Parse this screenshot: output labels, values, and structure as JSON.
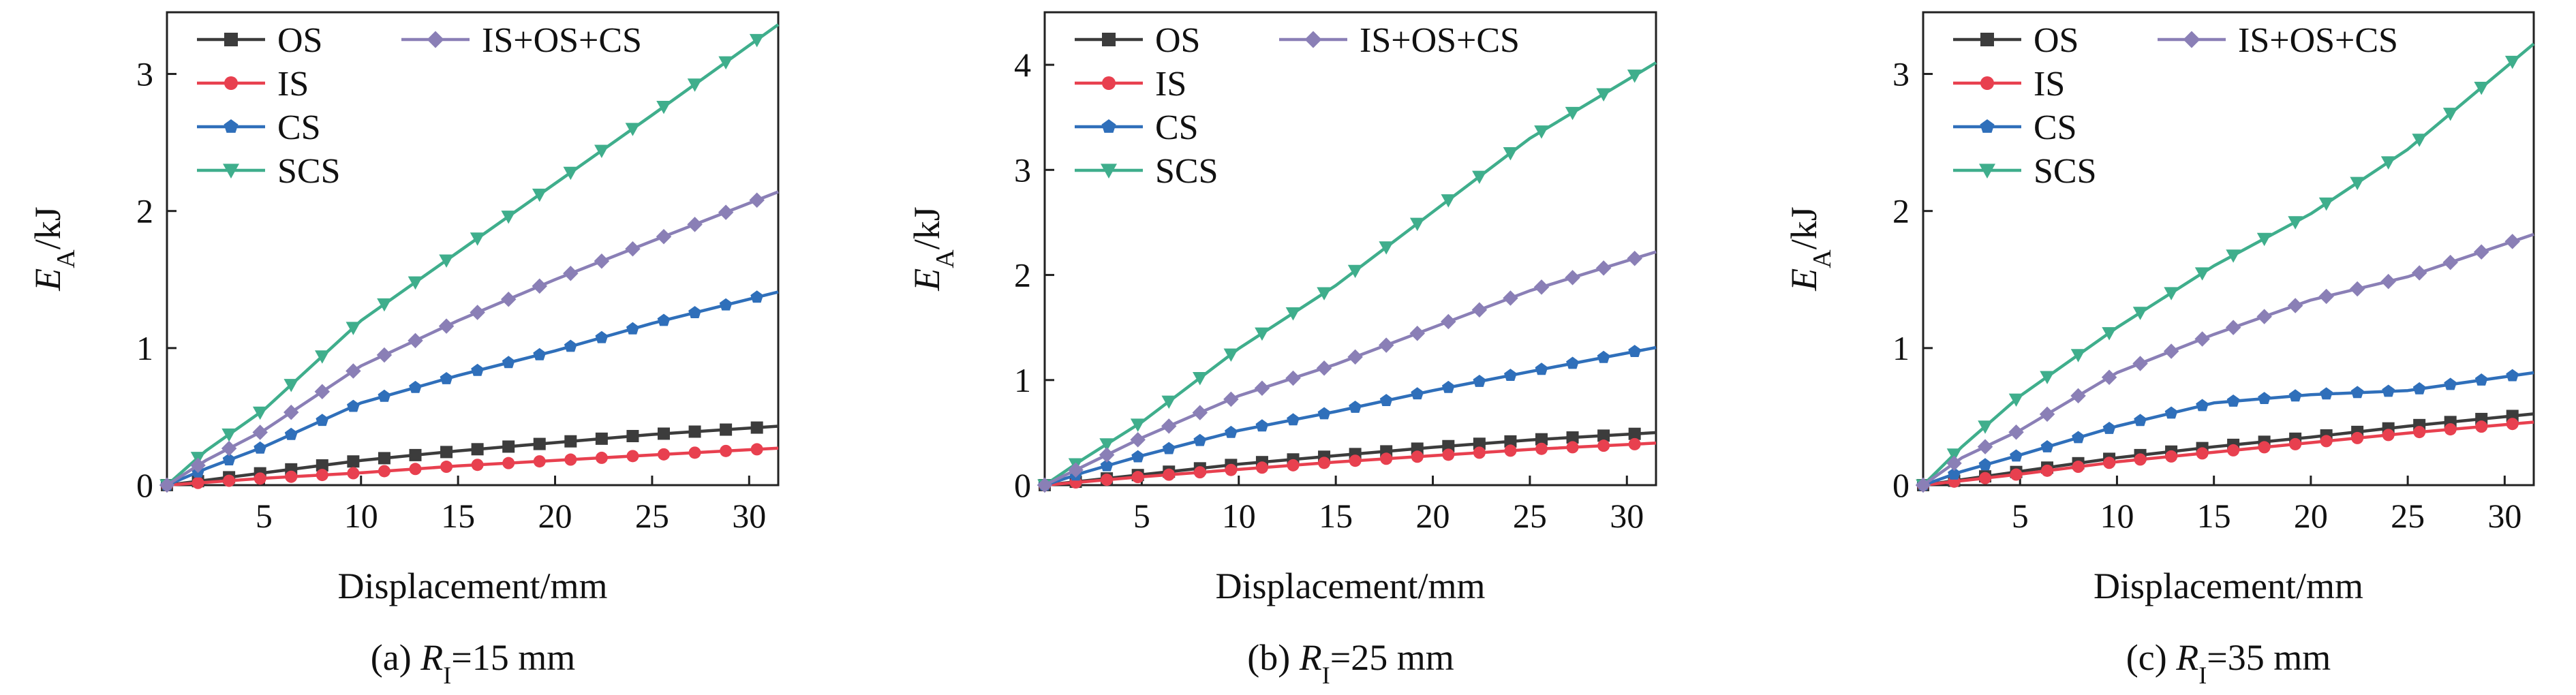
{
  "figure": {
    "series_styles": [
      {
        "key": "OS",
        "color": "#3c3c3c",
        "marker": "square"
      },
      {
        "key": "IS",
        "color": "#e8404f",
        "marker": "circle"
      },
      {
        "key": "CS",
        "color": "#2f6fba",
        "marker": "pentagon"
      },
      {
        "key": "SCS",
        "color": "#3fae8c",
        "marker": "triangle-down"
      },
      {
        "key": "IS+OS+CS",
        "color": "#8a7fb6",
        "marker": "diamond"
      }
    ]
  },
  "chart_data": [
    {
      "type": "line",
      "caption": {
        "prefix": "(a) ",
        "var": "R",
        "sub": "I",
        "suffix": "=15 mm"
      },
      "xlabel": "Displacement/mm",
      "ylabel": {
        "main": "E",
        "sub": "A",
        "unit": "/kJ"
      },
      "xlim": [
        0,
        31.5
      ],
      "ylim": [
        0,
        3.45
      ],
      "xticks": [
        5,
        10,
        15,
        20,
        25,
        30
      ],
      "yticks": [
        0,
        1,
        2,
        3
      ],
      "legend": "top-left",
      "series": [
        {
          "name": "OS",
          "x": [
            0,
            5,
            10,
            15,
            20,
            25,
            31.5
          ],
          "y": [
            0,
            0.09,
            0.18,
            0.25,
            0.31,
            0.37,
            0.43
          ]
        },
        {
          "name": "IS",
          "x": [
            0,
            5,
            10,
            15,
            20,
            25,
            31.5
          ],
          "y": [
            0,
            0.05,
            0.09,
            0.14,
            0.18,
            0.22,
            0.27
          ]
        },
        {
          "name": "CS",
          "x": [
            0,
            2,
            5,
            10,
            15,
            20,
            25,
            31.5
          ],
          "y": [
            0,
            0.12,
            0.28,
            0.6,
            0.8,
            0.98,
            1.18,
            1.41
          ]
        },
        {
          "name": "SCS",
          "x": [
            0,
            2,
            5,
            10,
            15,
            20,
            25,
            31.5
          ],
          "y": [
            0,
            0.25,
            0.55,
            1.2,
            1.7,
            2.2,
            2.7,
            3.36
          ]
        },
        {
          "name": "IS+OS+CS",
          "x": [
            0,
            2,
            5,
            10,
            15,
            20,
            25,
            31.5
          ],
          "y": [
            0,
            0.18,
            0.4,
            0.87,
            1.2,
            1.5,
            1.78,
            2.14
          ]
        }
      ]
    },
    {
      "type": "line",
      "caption": {
        "prefix": "(b) ",
        "var": "R",
        "sub": "I",
        "suffix": "=25 mm"
      },
      "xlabel": "Displacement/mm",
      "ylabel": {
        "main": "E",
        "sub": "A",
        "unit": "/kJ"
      },
      "xlim": [
        0,
        31.5
      ],
      "ylim": [
        0,
        4.5
      ],
      "xticks": [
        5,
        10,
        15,
        20,
        25,
        30
      ],
      "yticks": [
        0,
        1,
        2,
        3,
        4
      ],
      "legend": "top-left",
      "series": [
        {
          "name": "OS",
          "x": [
            0,
            5,
            10,
            15,
            20,
            25,
            31.5
          ],
          "y": [
            0,
            0.1,
            0.2,
            0.28,
            0.36,
            0.43,
            0.5
          ]
        },
        {
          "name": "IS",
          "x": [
            0,
            5,
            10,
            15,
            20,
            25,
            31.5
          ],
          "y": [
            0,
            0.08,
            0.15,
            0.22,
            0.28,
            0.34,
            0.4
          ]
        },
        {
          "name": "CS",
          "x": [
            0,
            2,
            5,
            10,
            15,
            20,
            25,
            31.5
          ],
          "y": [
            0,
            0.12,
            0.28,
            0.52,
            0.7,
            0.9,
            1.08,
            1.31
          ]
        },
        {
          "name": "SCS",
          "x": [
            0,
            2,
            5,
            10,
            15,
            20,
            25,
            31.5
          ],
          "y": [
            0,
            0.25,
            0.6,
            1.3,
            1.9,
            2.6,
            3.3,
            4.02
          ]
        },
        {
          "name": "IS+OS+CS",
          "x": [
            0,
            2,
            5,
            10,
            15,
            20,
            25,
            31.5
          ],
          "y": [
            0,
            0.18,
            0.45,
            0.85,
            1.15,
            1.5,
            1.85,
            2.22
          ]
        }
      ]
    },
    {
      "type": "line",
      "caption": {
        "prefix": "(c) ",
        "var": "R",
        "sub": "I",
        "suffix": "=35 mm"
      },
      "xlabel": "Displacement/mm",
      "ylabel": {
        "main": "E",
        "sub": "A",
        "unit": "/kJ"
      },
      "xlim": [
        0,
        31.5
      ],
      "ylim": [
        0,
        3.45
      ],
      "xticks": [
        5,
        10,
        15,
        20,
        25,
        30
      ],
      "yticks": [
        0,
        1,
        2,
        3
      ],
      "legend": "top-left",
      "series": [
        {
          "name": "OS",
          "x": [
            0,
            5,
            10,
            15,
            20,
            25,
            31.5
          ],
          "y": [
            0,
            0.1,
            0.2,
            0.28,
            0.35,
            0.43,
            0.52
          ]
        },
        {
          "name": "IS",
          "x": [
            0,
            5,
            10,
            15,
            20,
            25,
            31.5
          ],
          "y": [
            0,
            0.08,
            0.17,
            0.24,
            0.31,
            0.38,
            0.46
          ]
        },
        {
          "name": "CS",
          "x": [
            0,
            2,
            5,
            10,
            15,
            20,
            25,
            31.5
          ],
          "y": [
            0,
            0.1,
            0.22,
            0.43,
            0.6,
            0.66,
            0.69,
            0.82
          ]
        },
        {
          "name": "SCS",
          "x": [
            0,
            2,
            5,
            10,
            15,
            20,
            25,
            31.5
          ],
          "y": [
            0,
            0.28,
            0.65,
            1.15,
            1.6,
            1.98,
            2.45,
            3.22
          ]
        },
        {
          "name": "IS+OS+CS",
          "x": [
            0,
            2,
            5,
            10,
            15,
            20,
            25,
            31.5
          ],
          "y": [
            0,
            0.2,
            0.4,
            0.82,
            1.1,
            1.35,
            1.52,
            1.83
          ]
        }
      ]
    }
  ]
}
